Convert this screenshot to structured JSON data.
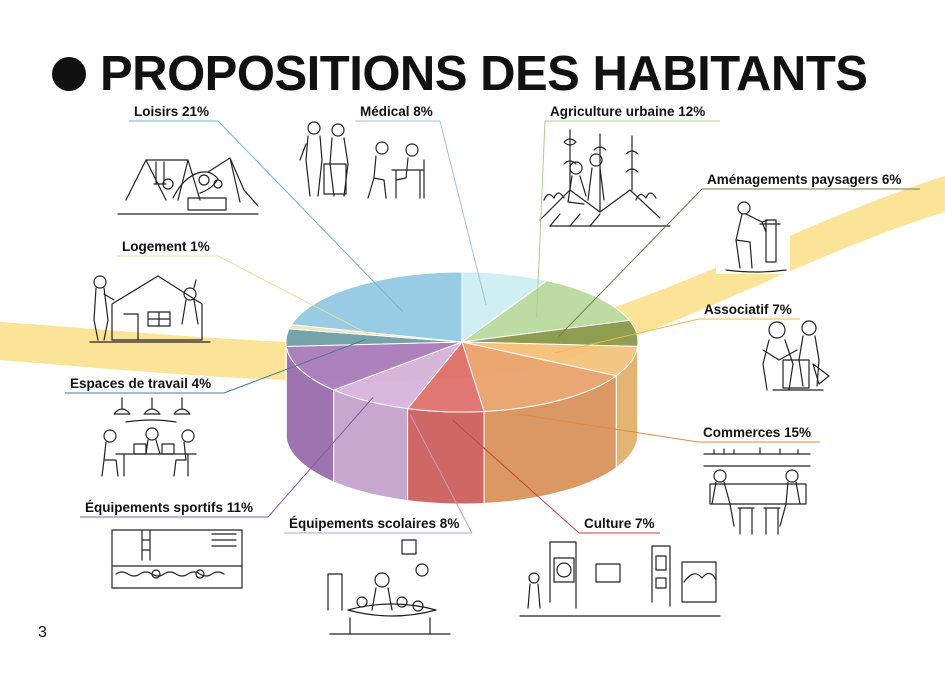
{
  "slide": {
    "title": "PROPOSITIONS DES HABITANTS",
    "page_number": "3"
  },
  "chart_data": {
    "type": "pie",
    "style": "3d",
    "categories": [
      "Médical",
      "Agriculture urbaine",
      "Aménagements paysagers",
      "Associatif",
      "Commerces",
      "Culture",
      "Équipements scolaires",
      "Équipements sportifs",
      "Espaces de travail",
      "Logement",
      "Loisirs"
    ],
    "values": [
      8,
      12,
      6,
      7,
      15,
      7,
      8,
      11,
      4,
      1,
      21
    ],
    "labels": [
      "Médical 8%",
      "Agriculture urbaine 12%",
      "Aménagements paysagers 6%",
      "Associatif 7%",
      "Commerces 15%",
      "Culture 7%",
      "Équipements scolaires 8%",
      "Équipements sportifs 11%",
      "Espaces de travail 4%",
      "Logement 1%",
      "Loisirs 21%"
    ],
    "colors": [
      "#cdeff2",
      "#b9dba0",
      "#8a9a50",
      "#f5c27c",
      "#eaa36c",
      "#df706c",
      "#d7b4dd",
      "#a97cbd",
      "#6f9fa5",
      "#f0e4b0",
      "#93c9e3"
    ],
    "label_line_colors": [
      "#9fc7cc",
      "#a9cf8c",
      "#707a48",
      "#f0b550",
      "#e08a45",
      "#c9423e",
      "#c49acb",
      "#8b58a5",
      "#3f7f97",
      "#eadf9a",
      "#6fb4d6"
    ],
    "decor_band_color": "#fbe18c",
    "illustrations": [
      "playground-sketch",
      "medical-consultation-sketch",
      "urban-garden-sketch",
      "landscaping-sketch",
      "house-sketch",
      "workshop-sketch",
      "coworking-sketch",
      "bar-counter-sketch",
      "swimming-pool-sketch",
      "classroom-sketch",
      "art-gallery-sketch"
    ]
  }
}
